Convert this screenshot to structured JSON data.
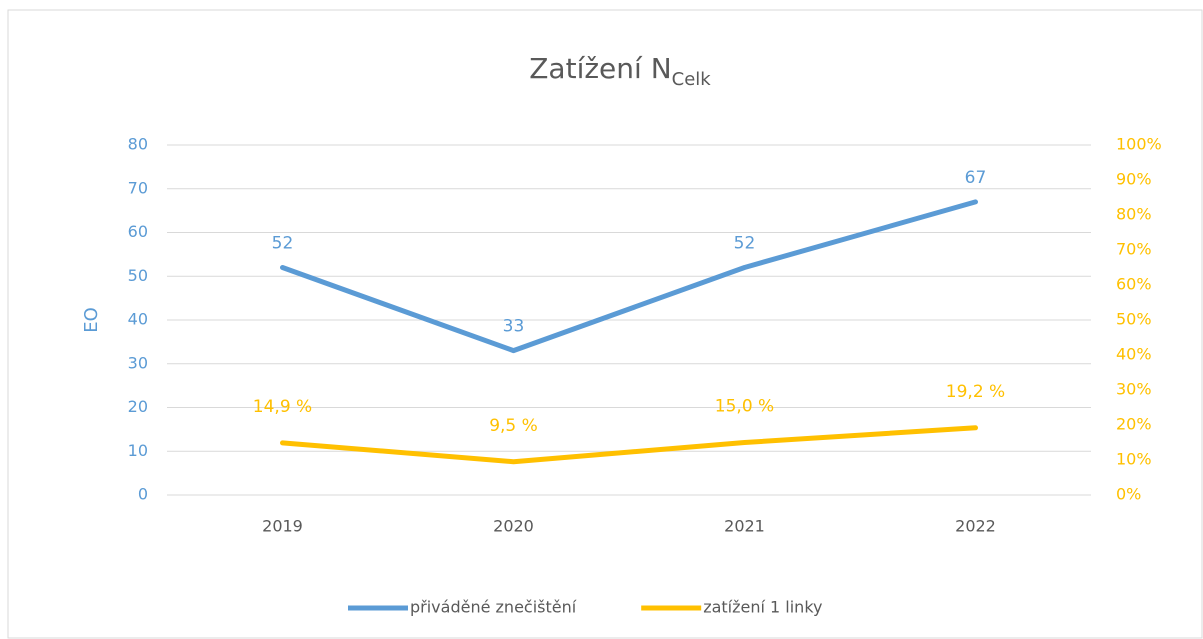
{
  "chart_data": {
    "type": "line",
    "title": "Zatížení N",
    "title_subscript": "Celk",
    "ylabel": "EO",
    "categories": [
      "2019",
      "2020",
      "2021",
      "2022"
    ],
    "series": [
      {
        "name": "přiváděné znečištění",
        "color": "#5b9bd5",
        "values": [
          52,
          33,
          52,
          67
        ]
      },
      {
        "name": "zatížení 1 linky",
        "color": "#ffc000",
        "axis": "y2",
        "values": [
          14.9,
          9.5,
          15.0,
          19.2
        ],
        "value_labels": [
          "14,9 %",
          "9,5 %",
          "15,0 %",
          "19,2 %"
        ]
      }
    ],
    "ylim": [
      0,
      80
    ],
    "yticks": [
      0,
      10,
      20,
      30,
      40,
      50,
      60,
      70,
      80
    ],
    "y2lim": [
      0,
      100
    ],
    "y2ticks": [
      {
        "value": 0,
        "label": "0%"
      },
      {
        "value": 10,
        "label": "10%"
      },
      {
        "value": 20,
        "label": "20%"
      },
      {
        "value": 30,
        "label": "30%"
      },
      {
        "value": 40,
        "label": "40%"
      },
      {
        "value": 50,
        "label": "50%"
      },
      {
        "value": 60,
        "label": "60%"
      },
      {
        "value": 70,
        "label": "70%"
      },
      {
        "value": 80,
        "label": "80%"
      },
      {
        "value": 90,
        "label": "90%"
      },
      {
        "value": 100,
        "label": "100%"
      }
    ],
    "grid": true,
    "legend": "bottom"
  }
}
